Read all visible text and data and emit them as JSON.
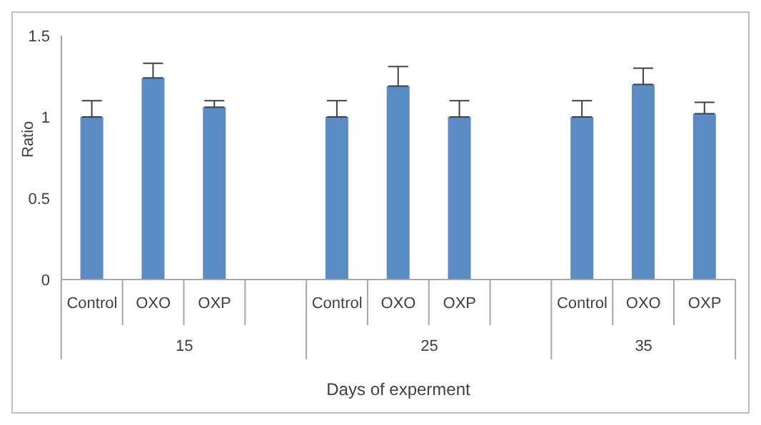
{
  "chart_data": {
    "type": "bar",
    "xlabel": "Days of experment",
    "ylabel": "Ratio",
    "categories": [
      "Control",
      "OXO",
      "OXP",
      null,
      "Control",
      "OXO",
      "OXP",
      null,
      "Control",
      "OXO",
      "OXP"
    ],
    "values": [
      1.0,
      1.24,
      1.06,
      null,
      1.0,
      1.19,
      1.0,
      null,
      1.0,
      1.2,
      1.02
    ],
    "errors": [
      [
        1.0,
        1.1
      ],
      [
        1.24,
        1.33
      ],
      [
        1.06,
        1.1
      ],
      null,
      [
        1.0,
        1.1
      ],
      [
        1.19,
        1.31
      ],
      [
        1.0,
        1.1
      ],
      null,
      [
        1.0,
        1.1
      ],
      [
        1.2,
        1.3
      ],
      [
        1.02,
        1.09
      ]
    ],
    "color": "#5b8bc5",
    "ylim": [
      0,
      1.5
    ],
    "yticks": [
      0,
      0.5,
      1,
      1.5
    ],
    "grid": false,
    "annotations": [
      "15",
      "25",
      "35"
    ]
  }
}
